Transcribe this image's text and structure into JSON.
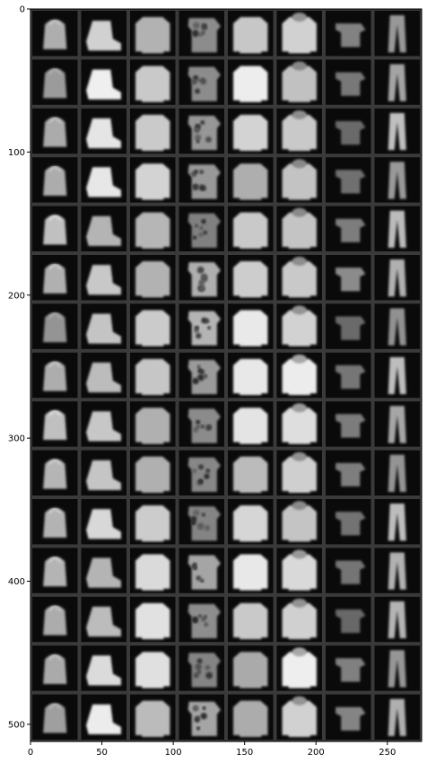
{
  "figure": {
    "image_description_label": "grid",
    "grid": {
      "rows": 15,
      "cols": 8
    },
    "x_axis": {
      "range": [
        0,
        274
      ],
      "ticks": [
        0,
        50,
        100,
        150,
        200,
        250
      ]
    },
    "y_axis": {
      "range": [
        0,
        512
      ],
      "ticks": [
        0,
        100,
        200,
        300,
        400,
        500
      ]
    },
    "colors": {
      "image_bg": "#0a0a0a",
      "cell_border": "#3a3a3a",
      "axis": "#000000"
    },
    "column_items": [
      "bag",
      "boot",
      "pullover",
      "shirt",
      "coat",
      "hoodie",
      "top",
      "trouser"
    ]
  }
}
